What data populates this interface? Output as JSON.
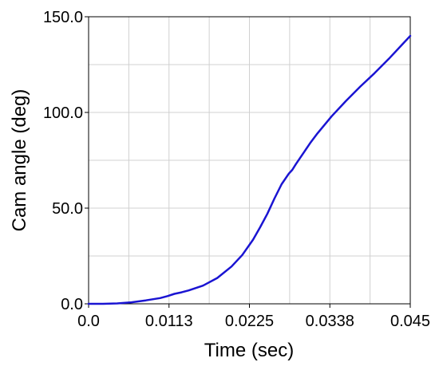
{
  "chart_data": {
    "type": "line",
    "xlabel": "Time (sec)",
    "ylabel": "Cam angle (deg)",
    "xlim": [
      0,
      0.045
    ],
    "ylim": [
      0,
      150
    ],
    "x_ticks": [
      0,
      0.01125,
      0.0225,
      0.03375,
      0.045
    ],
    "x_tick_labels": [
      "0.0",
      "0.0113",
      "0.0225",
      "0.0338",
      "0.045"
    ],
    "y_ticks": [
      0,
      50,
      100,
      150
    ],
    "y_tick_labels": [
      "0.0",
      "50.0",
      "100.0",
      "150.0"
    ],
    "x_minor_divisions": 2,
    "y_minor_divisions": 2,
    "grid": true,
    "series_color": "#1a14d2",
    "series": [
      {
        "x": [
          0,
          0.002,
          0.004,
          0.006,
          0.008,
          0.01,
          0.011,
          0.012,
          0.013,
          0.014,
          0.016,
          0.018,
          0.02,
          0.0215,
          0.023,
          0.024,
          0.025,
          0.026,
          0.027,
          0.028,
          0.0285,
          0.029,
          0.03,
          0.031,
          0.032,
          0.034,
          0.036,
          0.038,
          0.04,
          0.042,
          0.044,
          0.045
        ],
        "y": [
          0,
          0,
          0.2,
          0.8,
          1.8,
          3.0,
          4.0,
          5.2,
          6.0,
          7.0,
          9.5,
          13.5,
          19.5,
          25.5,
          33.5,
          40,
          47,
          55,
          62.5,
          68,
          70,
          73,
          78.5,
          84,
          89,
          98,
          106,
          113.5,
          120.5,
          128,
          136,
          140
        ]
      }
    ]
  }
}
